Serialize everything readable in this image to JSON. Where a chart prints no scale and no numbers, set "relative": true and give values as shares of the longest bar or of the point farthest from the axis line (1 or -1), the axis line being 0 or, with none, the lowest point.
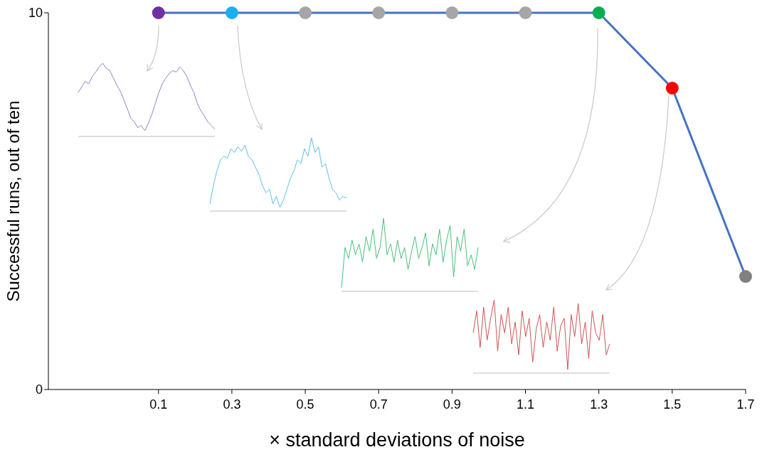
{
  "chart_data": [
    {
      "type": "line",
      "xlabel": "× standard deviations of noise",
      "ylabel": "Successful runs, out of ten",
      "x": [
        0.1,
        0.3,
        0.5,
        0.7,
        0.9,
        1.1,
        1.3,
        1.5,
        1.7
      ],
      "series": [
        {
          "color": "#4472c4",
          "values": [
            10,
            10,
            10,
            10,
            10,
            10,
            10,
            8,
            3
          ],
          "colors": [
            "#7030a0",
            "#1ab0f0",
            "#a6a6a6",
            "#a6a6a6",
            "#a6a6a6",
            "#a6a6a6",
            "#00b050",
            "#ff0000",
            "#808080"
          ]
        }
      ],
      "xlim": [
        -0.2,
        1.7
      ],
      "xticks": [
        0.1,
        0.3,
        0.5,
        0.7,
        0.9,
        1.1,
        1.3,
        1.5,
        1.7
      ],
      "ylim": [
        0,
        10
      ],
      "yticks": [
        0,
        10
      ],
      "marker": "circle",
      "line_style": "solid",
      "grid": false,
      "legend": false
    },
    {
      "type": "line",
      "relative": true,
      "marker": "none",
      "categories": [
        null,
        null,
        null,
        null,
        null,
        null,
        null,
        null,
        null,
        null,
        null,
        null,
        null,
        null,
        null,
        null,
        null,
        null,
        null,
        null,
        null,
        null,
        null,
        null,
        null,
        null,
        null,
        null,
        null,
        null,
        null,
        null,
        null,
        null,
        null,
        null,
        null,
        null,
        null,
        null
      ],
      "series": [
        {
          "color": "#9a7cc8",
          "values": [
            0.6,
            0.68,
            0.75,
            0.72,
            0.82,
            0.88,
            0.95,
            1.0,
            0.93,
            0.9,
            0.8,
            0.7,
            0.62,
            0.5,
            0.38,
            0.25,
            0.2,
            0.12,
            0.15,
            0.08,
            0.18,
            0.3,
            0.45,
            0.6,
            0.72,
            0.8,
            0.86,
            0.9,
            0.88,
            0.95,
            0.9,
            0.82,
            0.7,
            0.6,
            0.45,
            0.35,
            0.28,
            0.2,
            0.15,
            0.1
          ]
        }
      ]
    },
    {
      "type": "line",
      "relative": true,
      "marker": "none",
      "categories": [
        null,
        null,
        null,
        null,
        null,
        null,
        null,
        null,
        null,
        null,
        null,
        null,
        null,
        null,
        null,
        null,
        null,
        null,
        null,
        null,
        null,
        null,
        null,
        null,
        null,
        null,
        null,
        null,
        null,
        null,
        null,
        null,
        null,
        null,
        null,
        null,
        null,
        null,
        null,
        null
      ],
      "series": [
        {
          "color": "#5bc0ea",
          "values": [
            0.1,
            0.35,
            0.55,
            0.7,
            0.75,
            0.72,
            0.85,
            0.8,
            0.88,
            0.82,
            0.9,
            0.75,
            0.7,
            0.6,
            0.5,
            0.35,
            0.25,
            0.3,
            0.1,
            0.2,
            0.05,
            0.15,
            0.3,
            0.45,
            0.55,
            0.7,
            0.65,
            0.85,
            0.75,
            1.0,
            0.8,
            0.88,
            0.6,
            0.65,
            0.45,
            0.3,
            0.25,
            0.15,
            0.2,
            0.18
          ]
        }
      ]
    },
    {
      "type": "line",
      "relative": true,
      "marker": "none",
      "categories": [
        null,
        null,
        null,
        null,
        null,
        null,
        null,
        null,
        null,
        null,
        null,
        null,
        null,
        null,
        null,
        null,
        null,
        null,
        null,
        null,
        null,
        null,
        null,
        null,
        null,
        null,
        null,
        null,
        null,
        null,
        null,
        null,
        null,
        null,
        null,
        null,
        null,
        null,
        null,
        null
      ],
      "series": [
        {
          "color": "#4cbf7a",
          "values": [
            0.05,
            0.6,
            0.45,
            0.7,
            0.5,
            0.65,
            0.4,
            0.75,
            0.55,
            0.85,
            0.45,
            0.6,
            1.0,
            0.5,
            0.65,
            0.4,
            0.7,
            0.45,
            0.6,
            0.3,
            0.55,
            0.75,
            0.45,
            0.6,
            0.8,
            0.35,
            0.65,
            0.5,
            0.85,
            0.4,
            0.7,
            0.9,
            0.2,
            0.75,
            0.55,
            0.85,
            0.35,
            0.5,
            0.3,
            0.6
          ]
        }
      ]
    },
    {
      "type": "line",
      "relative": true,
      "marker": "none",
      "categories": [
        null,
        null,
        null,
        null,
        null,
        null,
        null,
        null,
        null,
        null,
        null,
        null,
        null,
        null,
        null,
        null,
        null,
        null,
        null,
        null,
        null,
        null,
        null,
        null,
        null,
        null,
        null,
        null,
        null,
        null,
        null,
        null,
        null,
        null,
        null,
        null,
        null,
        null,
        null,
        null
      ],
      "series": [
        {
          "color": "#cc5555",
          "values": [
            0.55,
            0.85,
            0.35,
            0.9,
            0.45,
            0.75,
            1.0,
            0.3,
            0.8,
            0.55,
            0.9,
            0.4,
            0.7,
            0.25,
            0.85,
            0.5,
            0.75,
            0.15,
            0.6,
            0.8,
            0.35,
            0.7,
            0.45,
            0.9,
            0.3,
            0.65,
            0.75,
            0.05,
            0.8,
            0.5,
            0.95,
            0.4,
            0.7,
            0.2,
            0.85,
            0.55,
            0.45,
            0.8,
            0.25,
            0.4
          ]
        }
      ]
    }
  ]
}
